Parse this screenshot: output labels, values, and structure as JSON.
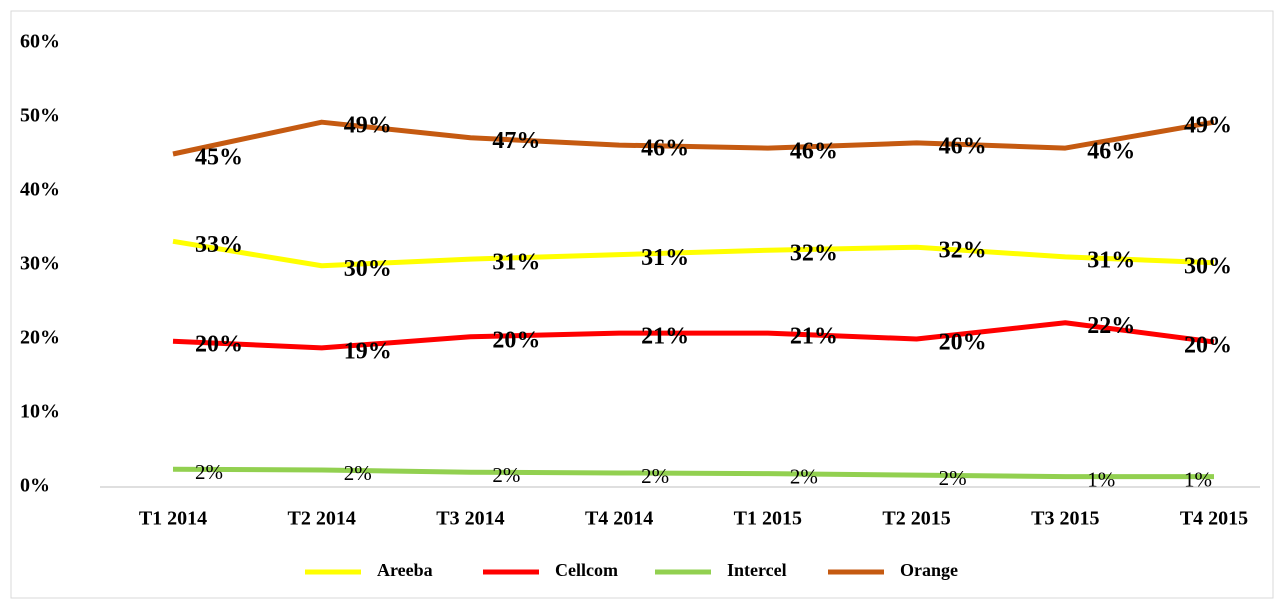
{
  "chart_data": {
    "type": "line",
    "categories": [
      "T1 2014",
      "T2 2014",
      "T3 2014",
      "T4 2014",
      "T1 2015",
      "T2 2015",
      "T3 2015",
      "T4 2015"
    ],
    "ylim": [
      0,
      60
    ],
    "yticks": [
      {
        "value": 0,
        "label": "0%"
      },
      {
        "value": 10,
        "label": "10%"
      },
      {
        "value": 20,
        "label": "20%"
      },
      {
        "value": 30,
        "label": "30%"
      },
      {
        "value": 40,
        "label": "40%"
      },
      {
        "value": 50,
        "label": "50%"
      },
      {
        "value": 60,
        "label": "60%"
      }
    ],
    "grid": false,
    "legend": "bottom",
    "series": [
      {
        "name": "Areeba",
        "color": "#ffff00",
        "values": [
          33.2,
          29.9,
          30.8,
          31.4,
          32.0,
          32.4,
          31.1,
          30.3
        ],
        "value_labels": [
          "33%",
          "30%",
          "31%",
          "31%",
          "32%",
          "32%",
          "31%",
          "30%"
        ]
      },
      {
        "name": "Cellcom",
        "color": "#ff0000",
        "values": [
          19.7,
          18.8,
          20.3,
          20.8,
          20.8,
          20.0,
          22.2,
          19.6
        ],
        "value_labels": [
          "20%",
          "19%",
          "20%",
          "21%",
          "21%",
          "20%",
          "22%",
          "20%"
        ]
      },
      {
        "name": "Intercel",
        "color": "#92d050",
        "values": [
          2.4,
          2.3,
          2.0,
          1.9,
          1.8,
          1.6,
          1.4,
          1.4
        ],
        "value_labels": [
          "2%",
          "2%",
          "2%",
          "2%",
          "2%",
          "2%",
          "1%",
          "1%"
        ]
      },
      {
        "name": "Orange",
        "color": "#c55a11",
        "values": [
          45.0,
          49.3,
          47.2,
          46.2,
          45.8,
          46.5,
          45.8,
          49.3
        ],
        "value_labels": [
          "45%",
          "49%",
          "47%",
          "46%",
          "46%",
          "46%",
          "46%",
          "49%"
        ]
      }
    ]
  }
}
